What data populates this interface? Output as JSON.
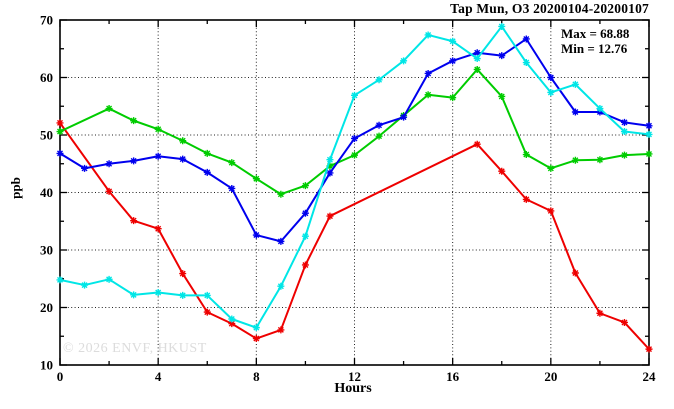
{
  "title": "Tap Mun, O3 20200104-20200107",
  "stats": {
    "max_label": "Max = 68.88",
    "min_label": "Min = 12.76"
  },
  "watermark": "© 2026 ENVF, HKUST",
  "colors": {
    "background": "#ffffff",
    "axis": "#000000",
    "grid": "#222222",
    "watermark": "#dcdcdc"
  },
  "chart_data": {
    "type": "line",
    "title": "Tap Mun, O3 20200104-20200107",
    "xlabel": "Hours",
    "ylabel": "ppb",
    "xlim": [
      0,
      24
    ],
    "ylim": [
      10,
      70
    ],
    "x_major_ticks": [
      0,
      4,
      8,
      12,
      16,
      20,
      24
    ],
    "x_minor_ticks": [
      2,
      6,
      10,
      14,
      18,
      22
    ],
    "y_major_ticks": [
      10,
      20,
      30,
      40,
      50,
      60,
      70
    ],
    "y_minor_ticks": [
      15,
      25,
      35,
      45,
      55,
      65
    ],
    "grid_x_values": [
      4,
      8,
      12,
      16,
      20
    ],
    "grid_y_values": [
      20,
      30,
      40,
      50,
      60
    ],
    "legend": "none",
    "marker": "asterisk",
    "annotations": {
      "max": 68.88,
      "min": 12.76
    },
    "series": [
      {
        "name": "red",
        "color": "#ee0000",
        "points": [
          [
            0,
            52.1
          ],
          [
            2,
            40.2
          ],
          [
            3,
            35.1
          ],
          [
            4,
            33.7
          ],
          [
            5,
            25.9
          ],
          [
            6,
            19.2
          ],
          [
            7,
            17.2
          ],
          [
            8,
            14.6
          ],
          [
            9,
            16.1
          ],
          [
            10,
            27.4
          ],
          [
            11,
            35.9
          ],
          [
            17,
            48.4
          ],
          [
            18,
            43.7
          ],
          [
            19,
            38.8
          ],
          [
            20,
            36.8
          ],
          [
            21,
            26.0
          ],
          [
            22,
            19.0
          ],
          [
            23,
            17.4
          ],
          [
            24,
            12.76
          ]
        ]
      },
      {
        "name": "green",
        "color": "#00cc00",
        "points": [
          [
            0,
            50.6
          ],
          [
            2,
            54.6
          ],
          [
            3,
            52.5
          ],
          [
            4,
            51.0
          ],
          [
            5,
            49.0
          ],
          [
            6,
            46.8
          ],
          [
            7,
            45.2
          ],
          [
            8,
            42.4
          ],
          [
            9,
            39.7
          ],
          [
            10,
            41.2
          ],
          [
            11,
            44.6
          ],
          [
            12,
            46.5
          ],
          [
            13,
            49.8
          ],
          [
            14,
            53.4
          ],
          [
            15,
            57.0
          ],
          [
            16,
            56.5
          ],
          [
            17,
            61.4
          ],
          [
            18,
            56.7
          ],
          [
            19,
            46.6
          ],
          [
            20,
            44.2
          ],
          [
            21,
            45.6
          ],
          [
            22,
            45.7
          ],
          [
            23,
            46.5
          ],
          [
            24,
            46.7
          ]
        ]
      },
      {
        "name": "blue",
        "color": "#0000ee",
        "points": [
          [
            0,
            46.8
          ],
          [
            1,
            44.2
          ],
          [
            2,
            45.0
          ],
          [
            3,
            45.5
          ],
          [
            4,
            46.3
          ],
          [
            5,
            45.8
          ],
          [
            6,
            43.5
          ],
          [
            7,
            40.7
          ],
          [
            8,
            32.6
          ],
          [
            9,
            31.5
          ],
          [
            10,
            36.4
          ],
          [
            11,
            43.4
          ],
          [
            12,
            49.4
          ],
          [
            13,
            51.7
          ],
          [
            14,
            53.1
          ],
          [
            15,
            60.7
          ],
          [
            16,
            62.9
          ],
          [
            17,
            64.3
          ],
          [
            18,
            63.8
          ],
          [
            19,
            66.7
          ],
          [
            20,
            60.0
          ],
          [
            21,
            54.0
          ],
          [
            22,
            54.0
          ],
          [
            23,
            52.2
          ],
          [
            24,
            51.6
          ]
        ]
      },
      {
        "name": "cyan",
        "color": "#00e6e6",
        "points": [
          [
            0,
            24.8
          ],
          [
            1,
            23.9
          ],
          [
            2,
            24.9
          ],
          [
            3,
            22.2
          ],
          [
            4,
            22.6
          ],
          [
            5,
            22.1
          ],
          [
            6,
            22.1
          ],
          [
            7,
            18.0
          ],
          [
            8,
            16.5
          ],
          [
            9,
            23.7
          ],
          [
            10,
            32.4
          ],
          [
            11,
            45.7
          ],
          [
            12,
            56.9
          ],
          [
            13,
            59.6
          ],
          [
            14,
            62.9
          ],
          [
            15,
            67.4
          ],
          [
            16,
            66.3
          ],
          [
            17,
            63.3
          ],
          [
            18,
            68.88
          ],
          [
            19,
            62.6
          ],
          [
            20,
            57.4
          ],
          [
            21,
            58.8
          ],
          [
            22,
            54.6
          ],
          [
            23,
            50.6
          ],
          [
            24,
            50.1
          ]
        ]
      }
    ]
  }
}
